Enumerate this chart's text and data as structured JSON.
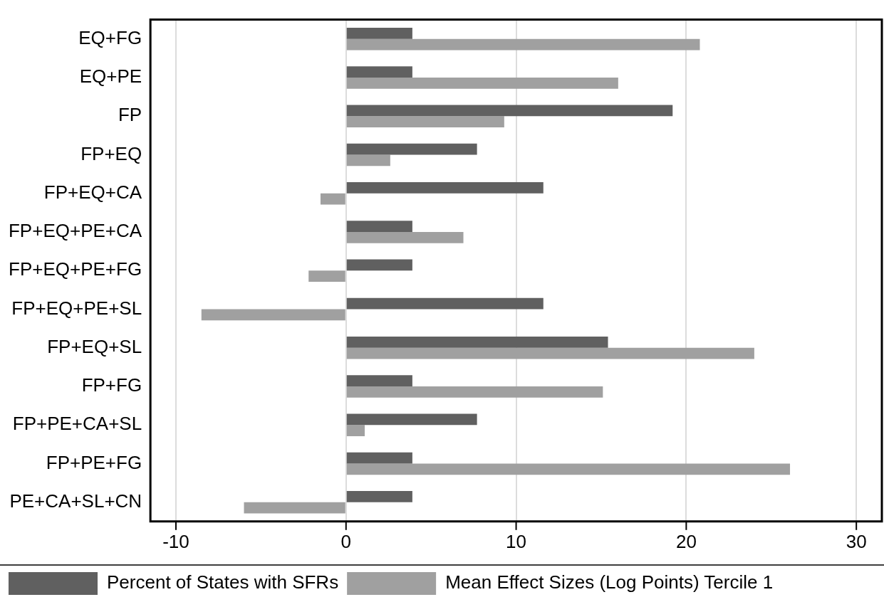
{
  "chart_data": {
    "type": "bar",
    "orientation": "horizontal",
    "categories": [
      "EQ+FG",
      "EQ+PE",
      "FP",
      "FP+EQ",
      "FP+EQ+CA",
      "FP+EQ+PE+CA",
      "FP+EQ+PE+FG",
      "FP+EQ+PE+SL",
      "FP+EQ+SL",
      "FP+FG",
      "FP+PE+CA+SL",
      "FP+PE+FG",
      "PE+CA+SL+CN"
    ],
    "series": [
      {
        "name": "Percent of States with SFRs",
        "color": "#606060",
        "values": [
          3.9,
          3.9,
          19.2,
          7.7,
          11.6,
          3.9,
          3.9,
          11.6,
          15.4,
          3.9,
          7.7,
          3.9,
          3.9
        ]
      },
      {
        "name": "Mean Effect Sizes (Log Points) Tercile 1",
        "color": "#a0a0a0",
        "values": [
          20.8,
          16.0,
          9.3,
          2.6,
          -1.5,
          6.9,
          -2.2,
          -8.5,
          24.0,
          15.1,
          1.1,
          26.1,
          -6.0
        ]
      }
    ],
    "xlim": [
      -11.5,
      31.5
    ],
    "xticks": [
      -10,
      0,
      10,
      20,
      30
    ],
    "grid": "x",
    "legend": "bottom left"
  }
}
